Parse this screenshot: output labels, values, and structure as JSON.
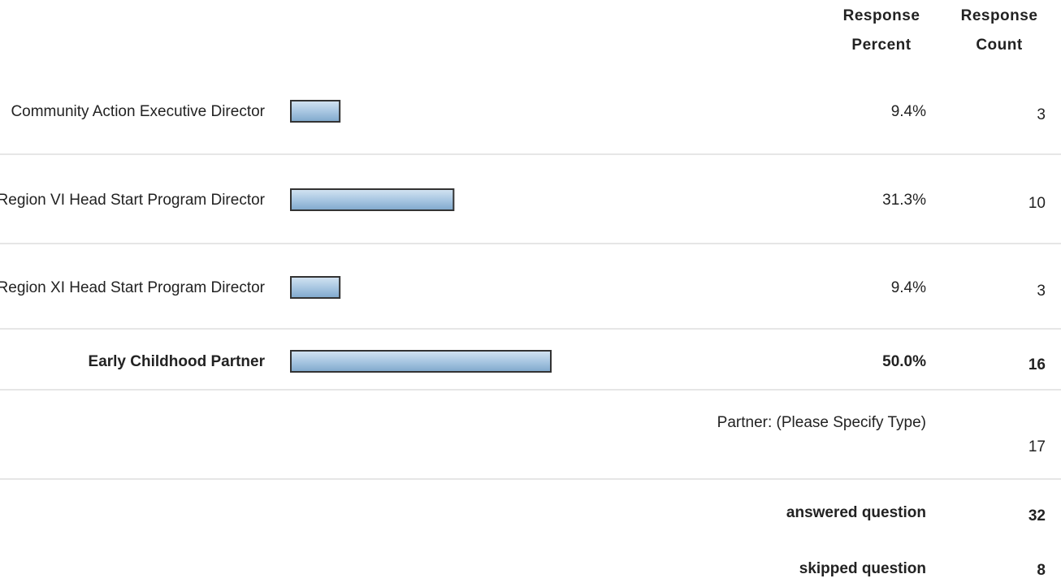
{
  "chart_data": {
    "type": "bar",
    "headers": {
      "percent": "Response Percent",
      "count": "Response Count"
    },
    "categories": [
      "Community Action Executive Director",
      "Region VI Head Start Program Director",
      "Region XI Head Start Program Director",
      "Early Childhood Partner"
    ],
    "values": [
      9.4,
      31.3,
      9.4,
      50.0
    ],
    "value_labels": [
      "9.4%",
      "31.3%",
      "9.4%",
      "50.0%"
    ],
    "counts": [
      3,
      10,
      3,
      16
    ],
    "xlim": [
      0,
      100
    ],
    "color": "#a9c7e2",
    "other": {
      "label": "Partner: (Please Specify Type)",
      "count": 17
    },
    "answered": {
      "label": "answered question",
      "count": 32
    },
    "skipped": {
      "label": "skipped question",
      "count": 8
    }
  }
}
